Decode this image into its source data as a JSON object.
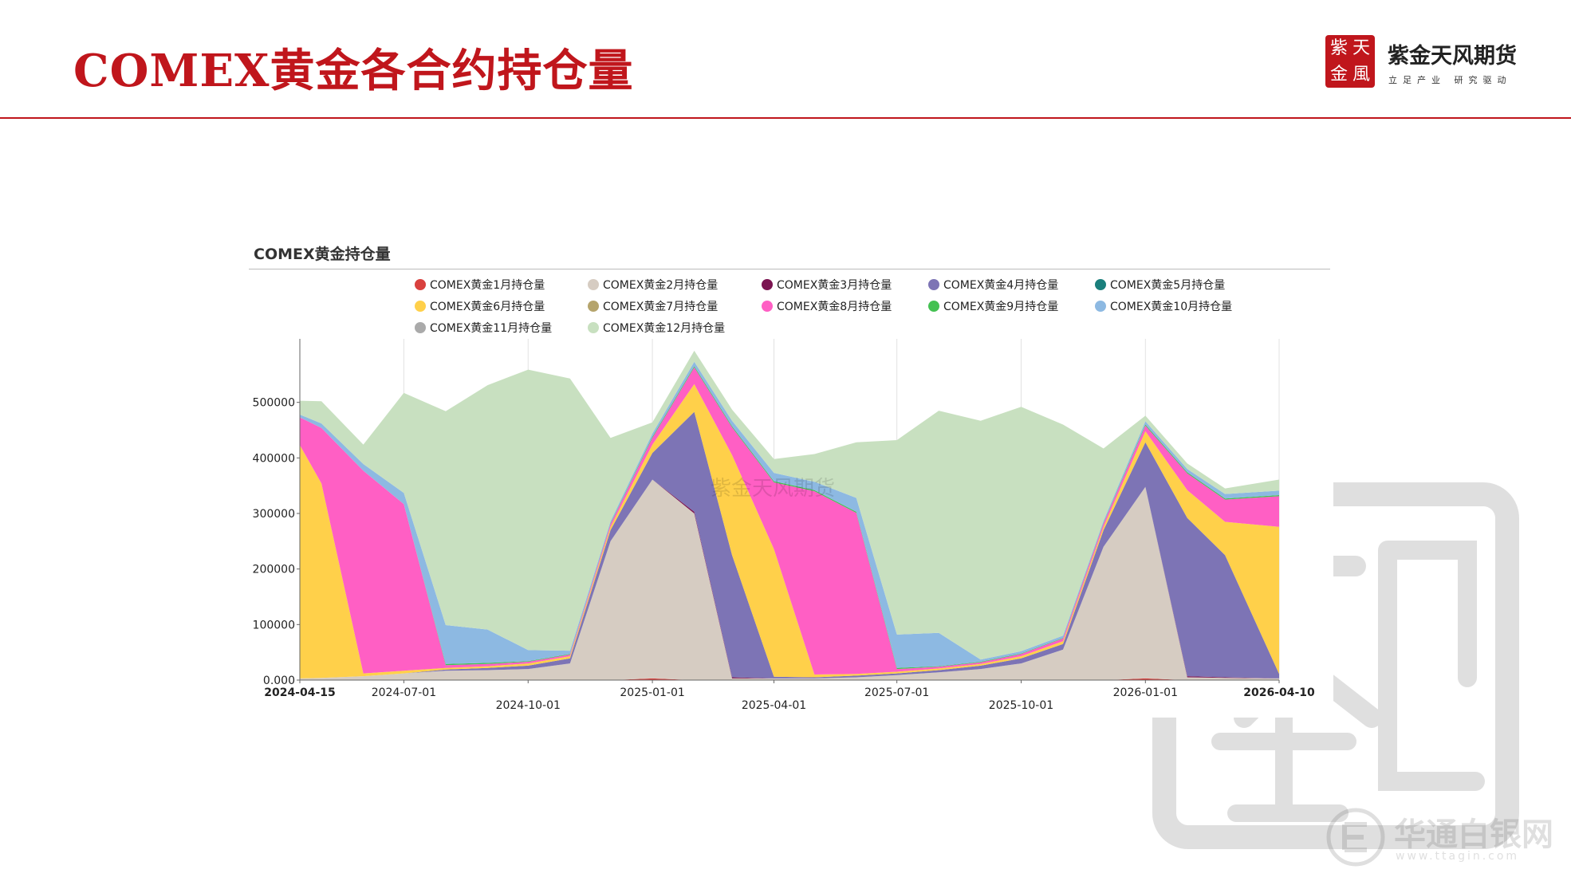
{
  "header": {
    "title": "COMEX黄金各合约持仓量",
    "logo": {
      "seal_chars": [
        "紫",
        "天",
        "金",
        "風"
      ],
      "name": "紫金天风期货",
      "tagline": "立足产业 研究驱动"
    }
  },
  "watermarks": {
    "chart": "紫金天风期货",
    "footer_name": "华通白银网",
    "footer_url": "www.ttagin.com"
  },
  "colors": {
    "brand_red": "#c0161c"
  },
  "chart_data": {
    "type": "area",
    "stacked": true,
    "title": "COMEX黄金持仓量",
    "legend_position": "top",
    "grid": "vertical",
    "x": [
      "2024-04-15",
      "2024-05-01",
      "2024-06-01",
      "2024-07-01",
      "2024-08-01",
      "2024-09-01",
      "2024-10-01",
      "2024-11-01",
      "2024-12-01",
      "2025-01-01",
      "2025-02-01",
      "2025-03-01",
      "2025-04-01",
      "2025-05-01",
      "2025-06-01",
      "2025-07-01",
      "2025-08-01",
      "2025-09-01",
      "2025-10-01",
      "2025-11-01",
      "2025-12-01",
      "2026-01-01",
      "2026-02-01",
      "2026-03-01",
      "2026-04-10"
    ],
    "x_tick_labels": [
      "2024-04-15",
      "2024-07-01",
      "2024-10-01",
      "2025-01-01",
      "2025-04-01",
      "2025-07-01",
      "2025-10-01",
      "2026-01-01",
      "2026-04-10"
    ],
    "y_ticks": [
      0,
      100000,
      200000,
      300000,
      400000,
      500000
    ],
    "y_tick_labels": [
      "0.000",
      "100000",
      "200000",
      "300000",
      "400000",
      "500000"
    ],
    "ylim": [
      0,
      600000
    ],
    "series": [
      {
        "name": "COMEX黄金1月持仓量",
        "color": "#d9413e",
        "values": [
          0,
          0,
          0,
          0,
          0,
          0,
          0,
          0,
          0,
          3000,
          0,
          0,
          0,
          0,
          0,
          0,
          0,
          0,
          0,
          0,
          0,
          3000,
          0,
          0,
          0
        ]
      },
      {
        "name": "COMEX黄金2月持仓量",
        "color": "#d6ccc2",
        "values": [
          3000,
          4000,
          7000,
          12000,
          17000,
          18000,
          20000,
          30000,
          250000,
          358000,
          300000,
          3000,
          3000,
          3000,
          5000,
          9000,
          14000,
          20000,
          30000,
          55000,
          240000,
          345000,
          5000,
          4000,
          3000
        ]
      },
      {
        "name": "COMEX黄金3月持仓量",
        "color": "#7b1451",
        "values": [
          0,
          0,
          0,
          0,
          0,
          0,
          0,
          0,
          0,
          0,
          3000,
          2000,
          0,
          0,
          0,
          0,
          0,
          0,
          0,
          0,
          0,
          0,
          2000,
          1000,
          0
        ]
      },
      {
        "name": "COMEX黄金4月持仓量",
        "color": "#7d74b5",
        "values": [
          0,
          0,
          0,
          0,
          2000,
          4000,
          6000,
          9000,
          20000,
          48000,
          180000,
          220000,
          3000,
          2000,
          3000,
          3000,
          4000,
          6000,
          9000,
          10000,
          30000,
          80000,
          285000,
          220000,
          8000
        ]
      },
      {
        "name": "COMEX黄金5月持仓量",
        "color": "#1a7f7c",
        "values": [
          0,
          0,
          0,
          0,
          0,
          0,
          0,
          0,
          0,
          0,
          0,
          0,
          0,
          0,
          0,
          0,
          0,
          0,
          0,
          0,
          0,
          0,
          0,
          0,
          0
        ]
      },
      {
        "name": "COMEX黄金6月持仓量",
        "color": "#ffd04a",
        "values": [
          420000,
          350000,
          5000,
          5000,
          3000,
          3000,
          4000,
          4000,
          6000,
          15000,
          50000,
          180000,
          230000,
          5000,
          3000,
          3000,
          3000,
          3000,
          4000,
          5000,
          6000,
          20000,
          50000,
          60000,
          265000
        ]
      },
      {
        "name": "COMEX黄金7月持仓量",
        "color": "#b5a46c",
        "values": [
          0,
          0,
          0,
          0,
          0,
          0,
          0,
          0,
          0,
          0,
          0,
          0,
          0,
          0,
          0,
          0,
          0,
          0,
          0,
          0,
          0,
          0,
          0,
          0,
          0
        ]
      },
      {
        "name": "COMEX黄金8月持仓量",
        "color": "#ff5fc4",
        "values": [
          50000,
          100000,
          365000,
          300000,
          5000,
          4000,
          3000,
          3000,
          5000,
          12000,
          30000,
          50000,
          120000,
          330000,
          290000,
          5000,
          3000,
          3000,
          4000,
          5000,
          6000,
          10000,
          30000,
          40000,
          55000
        ]
      },
      {
        "name": "COMEX黄金9月持仓量",
        "color": "#44c152",
        "values": [
          0,
          0,
          0,
          0,
          2000,
          2000,
          1000,
          1000,
          1000,
          2000,
          2000,
          2000,
          2000,
          2000,
          2000,
          2000,
          1000,
          1000,
          1000,
          1000,
          1000,
          2000,
          2000,
          2000,
          2000
        ]
      },
      {
        "name": "COMEX黄金10月持仓量",
        "color": "#8db9e2",
        "values": [
          5000,
          8000,
          12000,
          20000,
          70000,
          60000,
          20000,
          6000,
          4000,
          6000,
          8000,
          10000,
          15000,
          15000,
          25000,
          60000,
          60000,
          4000,
          4000,
          4000,
          4000,
          6000,
          6000,
          8000,
          8000
        ]
      },
      {
        "name": "COMEX黄金11月持仓量",
        "color": "#aaaaaa",
        "values": [
          0,
          0,
          0,
          0,
          0,
          0,
          0,
          0,
          0,
          0,
          0,
          0,
          0,
          0,
          0,
          0,
          0,
          0,
          0,
          0,
          0,
          0,
          0,
          0,
          0
        ]
      },
      {
        "name": "COMEX黄金12月持仓量",
        "color": "#c8e0c0",
        "values": [
          25000,
          40000,
          35000,
          180000,
          385000,
          440000,
          505000,
          490000,
          150000,
          20000,
          20000,
          20000,
          25000,
          50000,
          100000,
          350000,
          400000,
          430000,
          440000,
          380000,
          130000,
          10000,
          10000,
          10000,
          20000
        ]
      }
    ]
  }
}
